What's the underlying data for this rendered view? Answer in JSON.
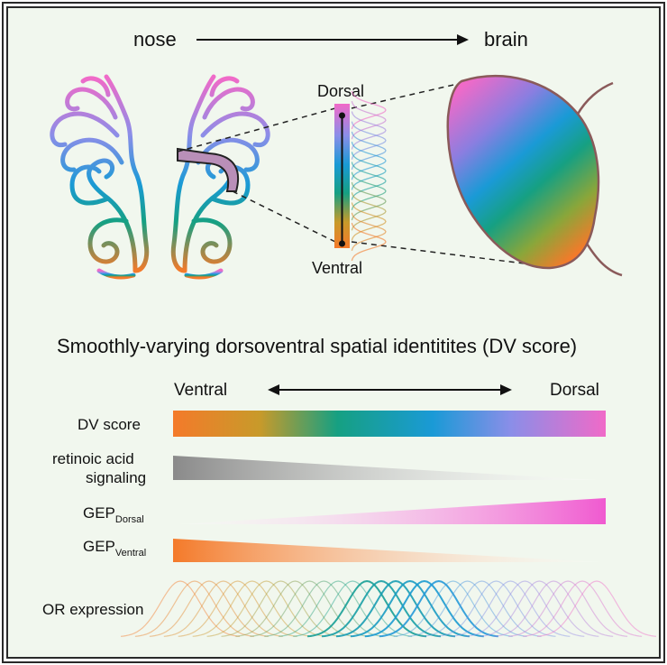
{
  "top": {
    "left_label": "nose",
    "right_label": "brain",
    "dorsal_label": "Dorsal",
    "ventral_label": "Ventral"
  },
  "title": "Smoothly-varying dorsoventral spatial identitites (DV score)",
  "axis": {
    "left_label": "Ventral",
    "right_label": "Dorsal"
  },
  "rows": {
    "dv_score": "DV score",
    "retinoic_line1": "retinoic acid",
    "retinoic_line2": "signaling",
    "gep_dorsal_main": "GEP",
    "gep_dorsal_sub": "Dorsal",
    "gep_ventral_main": "GEP",
    "gep_ventral_sub": "Ventral",
    "or_expression": "OR expression"
  },
  "colors": {
    "background": "#f1f7ee",
    "frame": "#2a2a2a",
    "dv_gradient": [
      "#f47a2a",
      "#c89a2a",
      "#16a082",
      "#1a9ad6",
      "#8a8ee8",
      "#f06ac8"
    ],
    "retinoic": "#8a8a8a",
    "gep_dorsal": "#f05ad0",
    "gep_ventral": "#f47a2a",
    "bulb_outline": "#8a5a5a"
  }
}
